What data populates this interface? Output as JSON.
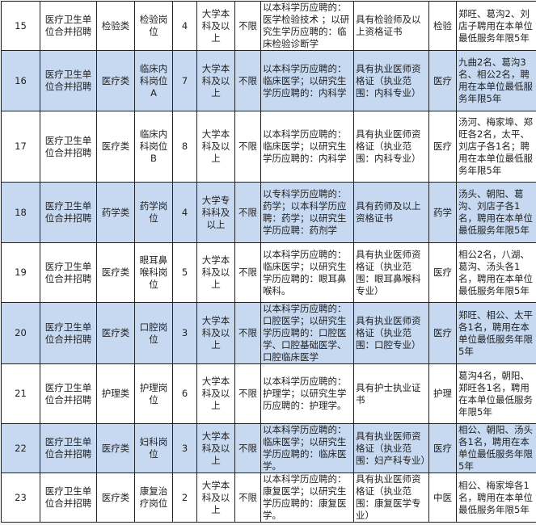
{
  "rows": [
    {
      "no": "15",
      "unit": "医疗卫生单位合并招聘",
      "category": "检验类",
      "post": "检验岗位",
      "count": "4",
      "education": "大学本科及以上",
      "age": "不限",
      "major": "以本科学历应聘的：医学检验技术 ；以研究生学历应聘的：临床检验诊断学",
      "qualification": "具有检验师及以上资格证书",
      "exam": "检验",
      "note": "郑旺、葛沟2、刘店子聘用在本单位最低服务年限5年",
      "highlight": false
    },
    {
      "no": "16",
      "unit": "医疗卫生单位合并招聘",
      "category": "医疗类",
      "post": "临床内科岗位A",
      "count": "7",
      "education": "大学本科及以上",
      "age": "不限",
      "major": "以本科学历应聘的：临床医学；以研究生学历应聘的：内科学",
      "qualification": "具有执业医师资格证（执业范围：内科专业）",
      "exam": "医疗",
      "note": "九曲2名、葛沟3名、相公2名，聘用在本单位最低服务年限5年",
      "highlight": true
    },
    {
      "no": "17",
      "unit": "医疗卫生单位合并招聘",
      "category": "医疗类",
      "post": "临床内科岗位B",
      "count": "8",
      "education": "大学本科及以上",
      "age": "不限",
      "major": "以本科学历应聘的：临床医学；以研究生学历应聘的：内科学",
      "qualification": "具有执业医师资格证（执业范围：内科专业）",
      "exam": "医疗",
      "note": "汤河、梅家埠、郑旺各2名，太平、刘店子各1名；聘用在本单位最低服务年限5年",
      "highlight": false
    },
    {
      "no": "18",
      "unit": "医疗卫生单位合并招聘",
      "category": "药学类",
      "post": "药学岗位",
      "count": "4",
      "education": "大学专科科及以上",
      "age": "不限",
      "major": "以专科学历应聘的：药学；以本科学历应聘：药学；以研究生学历应聘：药剂学",
      "qualification": "具有药师及以上资格证书",
      "exam": "药学",
      "note": "汤头、朝阳、葛沟、刘店子各1名，聘用在本单位最低服务年限5年",
      "highlight": true
    },
    {
      "no": "19",
      "unit": "医疗卫生单位合并招聘",
      "category": "医疗类",
      "post": "眼耳鼻喉科岗位",
      "count": "5",
      "education": "大学本科及以上",
      "age": "不限",
      "major": "以本科学历应聘的：临床医学；以研究生学历应聘的：眼耳鼻喉科。",
      "qualification": "具有执业医师资格证（执业范围：眼耳鼻喉科专业）",
      "exam": "医疗",
      "note": "相公2名，八湖、葛沟、汤头各1名，聘用在本单位最低服务年限5年",
      "highlight": false
    },
    {
      "no": "20",
      "unit": "医疗卫生单位合并招聘",
      "category": "医疗类",
      "post": "口腔岗位",
      "count": "3",
      "education": "大学本科及以上",
      "age": "不限",
      "major": "以本科学历应聘的： 口腔医学；以研究生学历应聘的：口腔医学、口腔基础医学、口腔临床医学",
      "qualification": "具有执业医师资格证（执业范围：口腔专业）",
      "exam": "医疗",
      "note": "郑旺、相公、太平各1名，聘用在本单位最低服务年限5年",
      "highlight": true
    },
    {
      "no": "21",
      "unit": "医疗卫生单位合并招聘",
      "category": "护理类",
      "post": "护理岗位",
      "count": "6",
      "education": "大学本科及以上",
      "age": "不限",
      "major": "以本科学历应聘的：护理学；以研究生学历应聘的：护理学。",
      "qualification": "具有护士执业证书",
      "exam": "护理",
      "note": "葛沟4名，朝阳、郑旺各1名，聘用在本单位最低服务年限5年",
      "highlight": false
    },
    {
      "no": "22",
      "unit": "医疗卫生单位合并招聘",
      "category": "医疗类",
      "post": "妇科岗位",
      "count": "3",
      "education": "大学本科及以上",
      "age": "不限",
      "major": "以本科学历应聘的：临床医学；以研究生学历应聘的：临床医学。",
      "qualification": "具有执业医师资格证（执业范围：妇产科专业）",
      "exam": "医疗",
      "note": "相公、朝阳、汤头各1名，聘用在本单位最低服务年限5年",
      "highlight": true
    },
    {
      "no": "23",
      "unit": "医疗卫生单位合并招聘",
      "category": "医疗类",
      "post": "康复治疗岗位",
      "count": "2",
      "education": "大学本科及以上",
      "age": "不限",
      "major": "以本科学历应聘的：康复医学；以研究生学历应聘的：康复医学。",
      "qualification": "具有执业医师资格证（执业范围：康复医学专业）",
      "exam": "中医",
      "note": "相公、梅家埠各1名，聘用在本单位最低服务年限5年",
      "highlight": false
    }
  ]
}
